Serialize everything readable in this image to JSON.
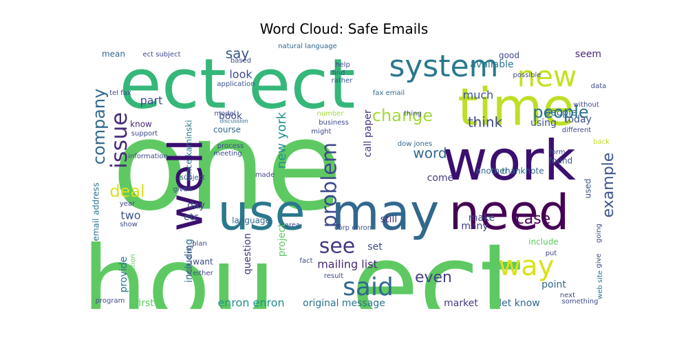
{
  "chart_data": {
    "type": "wordcloud",
    "title": "Word Cloud: Safe Emails",
    "colormap": "viridis",
    "background": "#ffffff",
    "words": [
      {
        "text": "one",
        "size": 180,
        "color": "#5ec962"
      },
      {
        "text": "hou",
        "size": 150,
        "color": "#5ec962"
      },
      {
        "text": "ect",
        "size": 160,
        "color": "#5ec962"
      },
      {
        "text": "ect ect",
        "size": 100,
        "color": "#35b779"
      },
      {
        "text": "work",
        "size": 80,
        "color": "#3b0f70"
      },
      {
        "text": "time",
        "size": 75,
        "color": "#bddf26"
      },
      {
        "text": "use",
        "size": 72,
        "color": "#2a788e"
      },
      {
        "text": "may",
        "size": 72,
        "color": "#31688e"
      },
      {
        "text": "need",
        "size": 70,
        "color": "#440154"
      },
      {
        "text": "well",
        "size": 68,
        "color": "#3b0f70"
      },
      {
        "text": "system",
        "size": 44,
        "color": "#2a788e"
      },
      {
        "text": "new",
        "size": 42,
        "color": "#c8e020"
      },
      {
        "text": "way",
        "size": 40,
        "color": "#d8e219"
      },
      {
        "text": "said",
        "size": 36,
        "color": "#31688e"
      },
      {
        "text": "issue",
        "size": 32,
        "color": "#472c7a"
      },
      {
        "text": "problem",
        "size": 30,
        "color": "#3e4989"
      },
      {
        "text": "see",
        "size": 30,
        "color": "#443a83"
      },
      {
        "text": "people",
        "size": 24,
        "color": "#2c728e"
      },
      {
        "text": "company",
        "size": 24,
        "color": "#31688e"
      },
      {
        "text": "deal",
        "size": 24,
        "color": "#d8e219"
      },
      {
        "text": "change",
        "size": 24,
        "color": "#a0da39"
      },
      {
        "text": "example",
        "size": 22,
        "color": "#3b528b"
      },
      {
        "text": "case",
        "size": 22,
        "color": "#440154"
      },
      {
        "text": "even",
        "size": 22,
        "color": "#433e85"
      },
      {
        "text": "think",
        "size": 20,
        "color": "#3e4989"
      },
      {
        "text": "word",
        "size": 20,
        "color": "#31688e"
      },
      {
        "text": "new york",
        "size": 18,
        "color": "#21918c"
      },
      {
        "text": "say",
        "size": 20,
        "color": "#3b528b"
      },
      {
        "text": "look",
        "size": 16,
        "color": "#3e4989"
      },
      {
        "text": "much",
        "size": 16,
        "color": "#3b528b"
      },
      {
        "text": "seem",
        "size": 14,
        "color": "#482677"
      },
      {
        "text": "two",
        "size": 16,
        "color": "#3b528b"
      },
      {
        "text": "part",
        "size": 16,
        "color": "#3e4989"
      },
      {
        "text": "vince kaminski",
        "size": 12,
        "color": "#2a788e"
      },
      {
        "text": "enron enron",
        "size": 16,
        "color": "#21918c"
      },
      {
        "text": "mailing list",
        "size": 16,
        "color": "#482677"
      },
      {
        "text": "original message",
        "size": 14,
        "color": "#2c728e"
      },
      {
        "text": "first",
        "size": 14,
        "color": "#5ec962"
      },
      {
        "text": "let know",
        "size": 14,
        "color": "#31688e"
      },
      {
        "text": "market",
        "size": 14,
        "color": "#443a83"
      },
      {
        "text": "point",
        "size": 14,
        "color": "#31688e"
      },
      {
        "text": "question",
        "size": 14,
        "color": "#46337e"
      },
      {
        "text": "project",
        "size": 14,
        "color": "#5ec962"
      },
      {
        "text": "including",
        "size": 14,
        "color": "#2c728e"
      },
      {
        "text": "provide",
        "size": 14,
        "color": "#2c728e"
      },
      {
        "text": "call paper",
        "size": 14,
        "color": "#46337e"
      },
      {
        "text": "book",
        "size": 14,
        "color": "#3e4989"
      },
      {
        "text": "course",
        "size": 12,
        "color": "#31688e"
      },
      {
        "text": "available",
        "size": 14,
        "color": "#2a788e"
      },
      {
        "text": "people",
        "size": 14,
        "color": "#2c728e"
      },
      {
        "text": "today",
        "size": 14,
        "color": "#3b528b"
      },
      {
        "text": "thanknote",
        "size": 12,
        "color": "#31688e"
      },
      {
        "text": "using",
        "size": 14,
        "color": "#3b528b"
      },
      {
        "text": "make",
        "size": 14,
        "color": "#3e4989"
      },
      {
        "text": "many",
        "size": 14,
        "color": "#443a83"
      },
      {
        "text": "still",
        "size": 14,
        "color": "#46337e"
      },
      {
        "text": "come",
        "size": 14,
        "color": "#443a83"
      },
      {
        "text": "set",
        "size": 14,
        "color": "#3e4989"
      },
      {
        "text": "another",
        "size": 12,
        "color": "#31688e"
      },
      {
        "text": "found",
        "size": 12,
        "color": "#3b528b"
      },
      {
        "text": "used",
        "size": 12,
        "color": "#3b528b"
      },
      {
        "text": "include",
        "size": 12,
        "color": "#5ec962"
      },
      {
        "text": "want",
        "size": 12,
        "color": "#3e4989"
      },
      {
        "text": "day",
        "size": 14,
        "color": "#3e4989"
      },
      {
        "text": "etc",
        "size": 14,
        "color": "#3b528b"
      },
      {
        "text": "language",
        "size": 12,
        "color": "#31688e"
      },
      {
        "text": "address",
        "size": 12,
        "color": "#2c728e"
      },
      {
        "text": "email",
        "size": 12,
        "color": "#2c728e"
      },
      {
        "text": "mean",
        "size": 12,
        "color": "#31688e"
      },
      {
        "text": "ect subject",
        "size": 10,
        "color": "#3e4989"
      },
      {
        "text": "natural language",
        "size": 10,
        "color": "#31688e"
      },
      {
        "text": "help",
        "size": 10,
        "color": "#3e4989"
      },
      {
        "text": "find",
        "size": 10,
        "color": "#3e4989"
      },
      {
        "text": "rather",
        "size": 10,
        "color": "#3b528b"
      },
      {
        "text": "fax email",
        "size": 10,
        "color": "#31688e"
      },
      {
        "text": "application",
        "size": 10,
        "color": "#3b528b"
      },
      {
        "text": "based",
        "size": 10,
        "color": "#3e4989"
      },
      {
        "text": "tel fax",
        "size": 10,
        "color": "#3e4989"
      },
      {
        "text": "know",
        "size": 12,
        "color": "#482677"
      },
      {
        "text": "support",
        "size": 10,
        "color": "#3e4989"
      },
      {
        "text": "information",
        "size": 10,
        "color": "#3e4989"
      },
      {
        "text": "subject",
        "size": 10,
        "color": "#3b528b"
      },
      {
        "text": "given",
        "size": 10,
        "color": "#3e4989"
      },
      {
        "text": "made",
        "size": 10,
        "color": "#3e4989"
      },
      {
        "text": "model",
        "size": 10,
        "color": "#3e4989"
      },
      {
        "text": "discussion",
        "size": 8,
        "color": "#31688e"
      },
      {
        "text": "process",
        "size": 10,
        "color": "#3e4989"
      },
      {
        "text": "meeting",
        "size": 10,
        "color": "#3e4989"
      },
      {
        "text": "business",
        "size": 10,
        "color": "#3e4989"
      },
      {
        "text": "might",
        "size": 10,
        "color": "#3e4989"
      },
      {
        "text": "number",
        "size": 10,
        "color": "#a0da39"
      },
      {
        "text": "thing",
        "size": 10,
        "color": "#3e4989"
      },
      {
        "text": "dow jones",
        "size": 10,
        "color": "#31688e"
      },
      {
        "text": "corp enron",
        "size": 10,
        "color": "#3b528b"
      },
      {
        "text": "plan",
        "size": 10,
        "color": "#3e4989"
      },
      {
        "text": "area",
        "size": 10,
        "color": "#3e4989"
      },
      {
        "text": "fact",
        "size": 10,
        "color": "#3e4989"
      },
      {
        "text": "result",
        "size": 10,
        "color": "#3e4989"
      },
      {
        "text": "either",
        "size": 10,
        "color": "#3e4989"
      },
      {
        "text": "year",
        "size": 10,
        "color": "#3e4989"
      },
      {
        "text": "show",
        "size": 10,
        "color": "#3e4989"
      },
      {
        "text": "program",
        "size": 10,
        "color": "#3e4989"
      },
      {
        "text": "position",
        "size": 10,
        "color": "#5ec962"
      },
      {
        "text": "good",
        "size": 12,
        "color": "#3e4989"
      },
      {
        "text": "possible",
        "size": 10,
        "color": "#3e4989"
      },
      {
        "text": "without",
        "size": 10,
        "color": "#3e4989"
      },
      {
        "text": "different",
        "size": 10,
        "color": "#3e4989"
      },
      {
        "text": "form",
        "size": 10,
        "color": "#3e4989"
      },
      {
        "text": "back",
        "size": 10,
        "color": "#bddf26"
      },
      {
        "text": "data",
        "size": 10,
        "color": "#3e4989"
      },
      {
        "text": "put",
        "size": 10,
        "color": "#3e4989"
      },
      {
        "text": "going",
        "size": 10,
        "color": "#3e4989"
      },
      {
        "text": "give",
        "size": 10,
        "color": "#3e4989"
      },
      {
        "text": "web site",
        "size": 10,
        "color": "#2c728e"
      },
      {
        "text": "something",
        "size": 10,
        "color": "#3e4989"
      },
      {
        "text": "next",
        "size": 10,
        "color": "#3e4989"
      },
      {
        "text": "including",
        "size": 10,
        "color": "#3e4989"
      }
    ]
  }
}
